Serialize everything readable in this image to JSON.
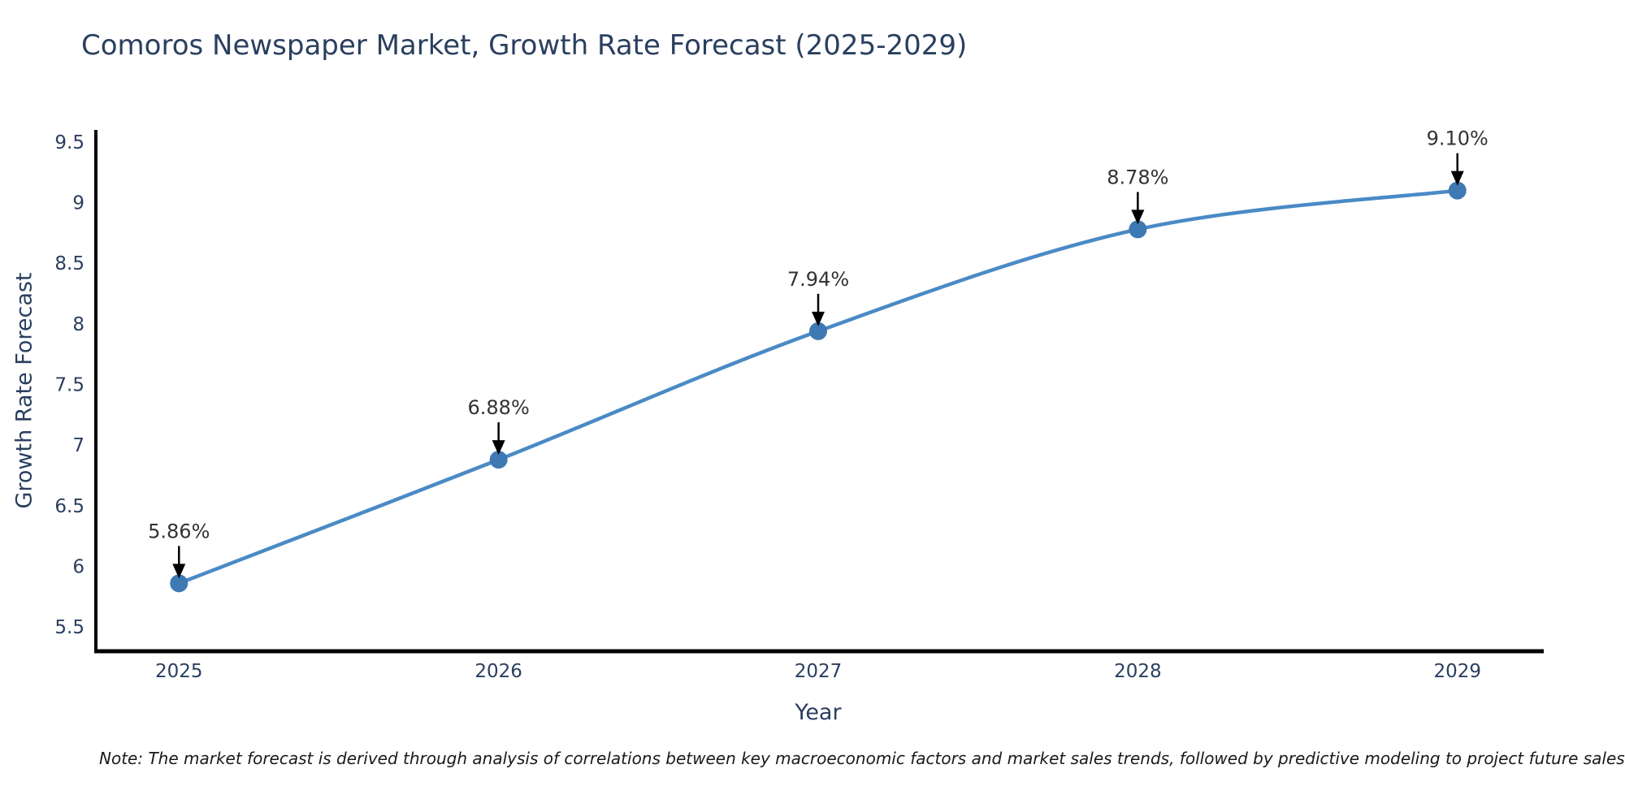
{
  "title": "Comoros Newspaper Market, Growth Rate Forecast (2025-2029)",
  "note": "Note: The market forecast is derived through analysis of correlations between key macroeconomic factors and market sales trends, followed by predictive modeling to project future sales",
  "chart_data": {
    "type": "line",
    "title": "Comoros Newspaper Market, Growth Rate Forecast (2025-2029)",
    "xlabel": "Year",
    "ylabel": "Growth Rate Forecast",
    "x": [
      2025,
      2026,
      2027,
      2028,
      2029
    ],
    "values": [
      5.86,
      6.88,
      7.94,
      8.78,
      9.1
    ],
    "point_labels": [
      "5.86%",
      "6.88%",
      "7.94%",
      "8.78%",
      "9.10%"
    ],
    "xtick_labels": [
      "2025",
      "2026",
      "2027",
      "2028",
      "2029"
    ],
    "yticks": [
      5.5,
      6,
      6.5,
      7,
      7.5,
      8,
      8.5,
      9,
      9.5
    ],
    "ytick_labels": [
      "5.5",
      "6",
      "6.5",
      "7",
      "7.5",
      "8",
      "8.5",
      "9",
      "9.5"
    ],
    "xlim": [
      2024.74,
      2029.26
    ],
    "ylim": [
      5.3,
      9.6
    ],
    "grid": false,
    "legend": "none",
    "line_shape": "spline",
    "annotation_style": "down-arrow",
    "colors": {
      "line": "#4a8ac5",
      "marker": "#3e79b4",
      "axis": "#000000",
      "tick_text": "#2a3f5f",
      "title_text": "#2a3f5f",
      "annotation_text": "#333333",
      "annotation_arrow": "#000000"
    }
  }
}
